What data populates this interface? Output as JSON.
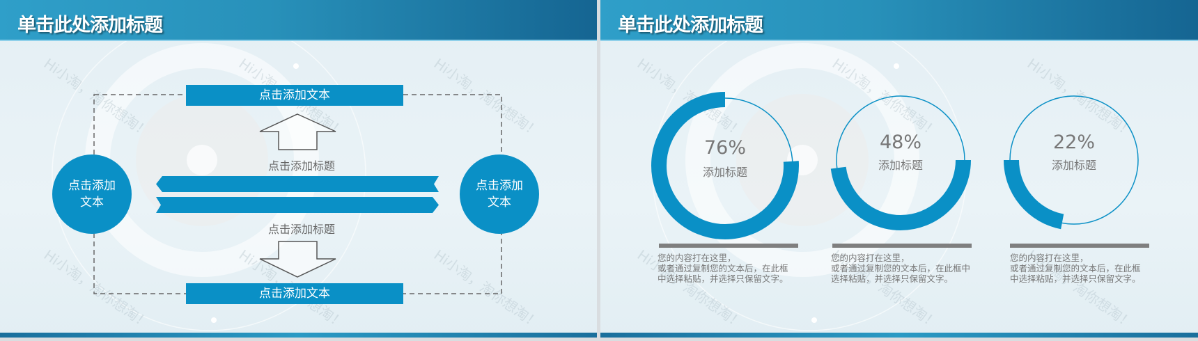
{
  "slide1": {
    "title": "单击此处添加标题",
    "top_box": "点击添加文本",
    "bottom_box": "点击添加文本",
    "left_circle": "点击添加文本",
    "right_circle": "点击添加文本",
    "upper_label": "点击添加标题",
    "lower_label": "点击添加标题",
    "watermark": "Hi小淘，淘你想淘！"
  },
  "slide2": {
    "title": "单击此处添加标题",
    "watermark": "Hi小淘，淘你想淘！",
    "rings": [
      {
        "percent": 76,
        "value": "76%",
        "label": "添加标题",
        "desc": [
          "您的内容打在这里，",
          "或者通过复制您的文本后，在此框",
          "中选择粘贴，并选择只保留文字。"
        ]
      },
      {
        "percent": 48,
        "value": "48%",
        "label": "添加标题",
        "desc": [
          "您的内容打在这里，",
          "或者通过复制您的文本后，在此框中",
          "选择粘贴，并选择只保留文字。"
        ]
      },
      {
        "percent": 22,
        "value": "22%",
        "label": "添加标题",
        "desc": [
          "您的内容打在这里，",
          "或者通过复制您的文本后，在此框",
          "中选择粘贴，并选择只保留文字。"
        ]
      }
    ]
  },
  "colors": {
    "accent": "#0a90c6",
    "header": "#2891ba",
    "bar": "#7f7f7f",
    "text": "#777777"
  }
}
